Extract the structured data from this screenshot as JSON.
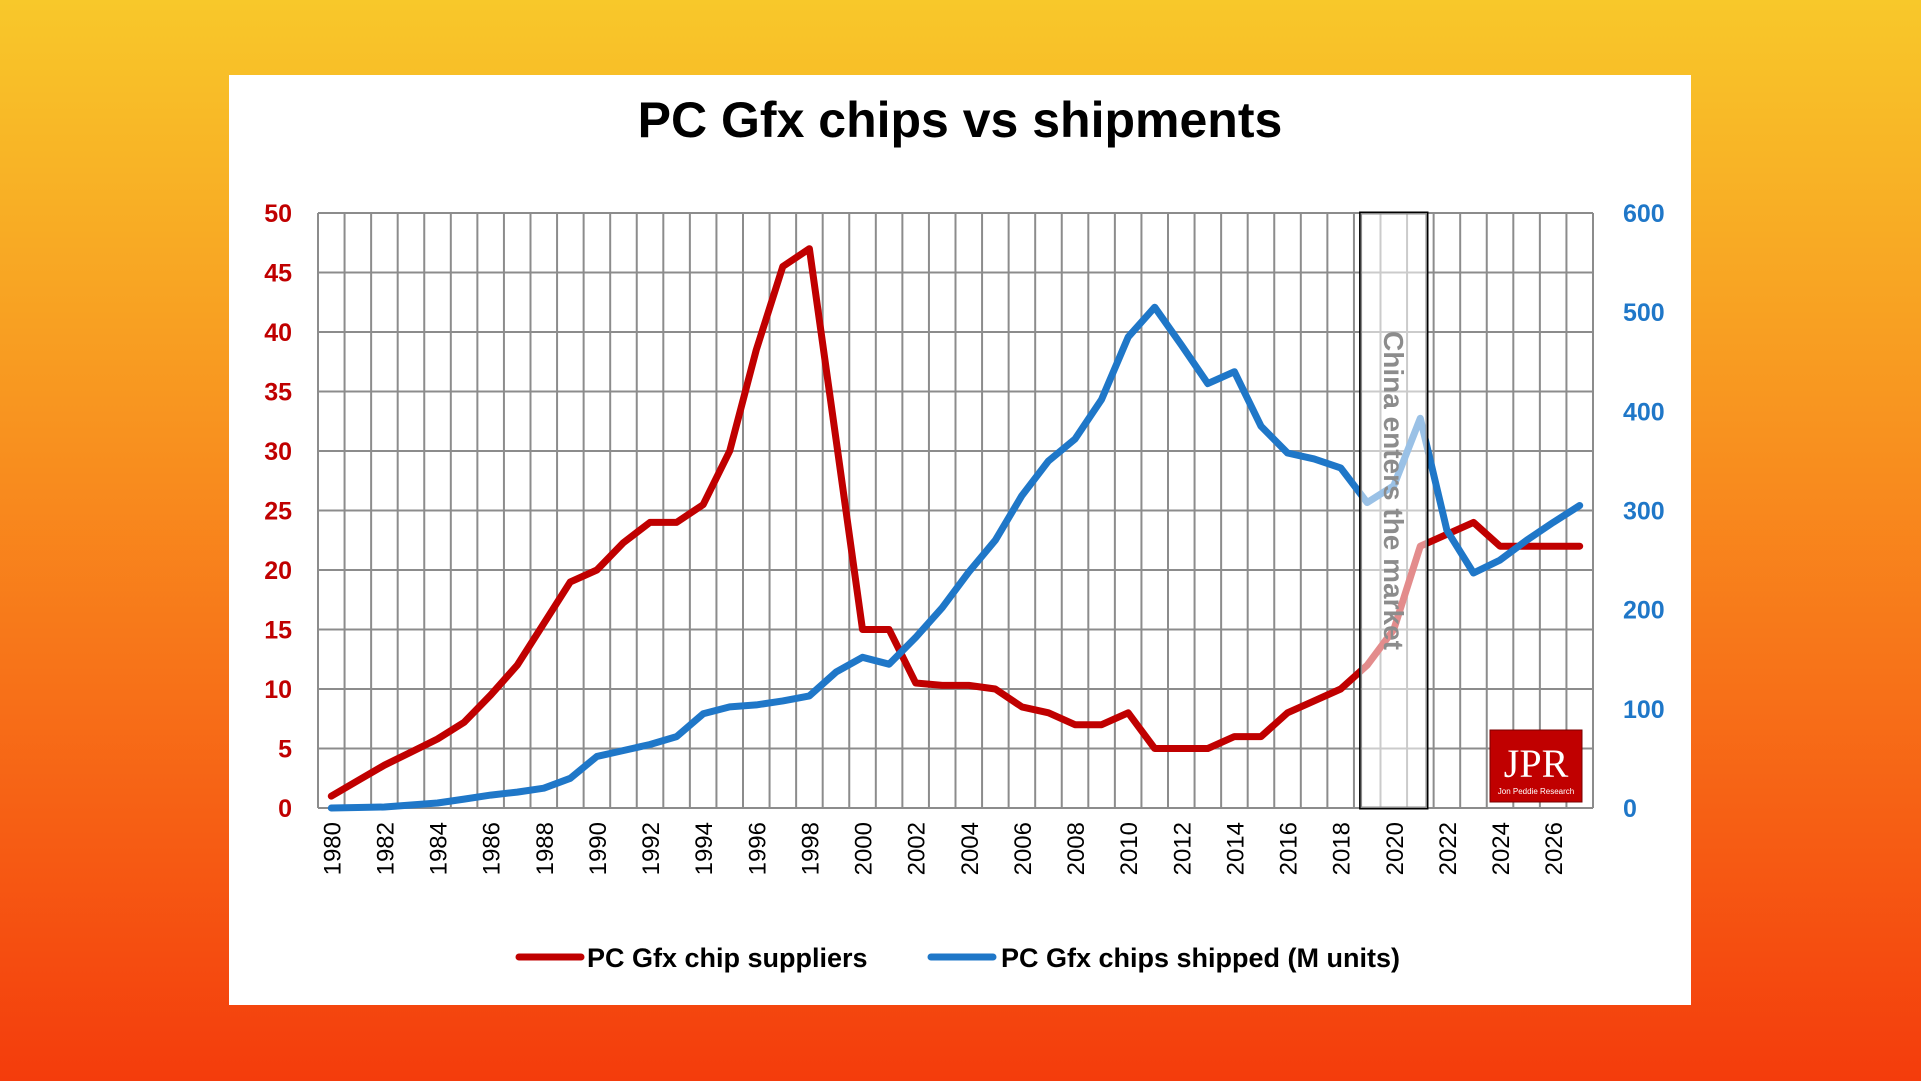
{
  "slide": {
    "background_top": "#f8c82a",
    "background_bottom": "#f43c0c"
  },
  "logo": {
    "text": "JPR",
    "subtext": "Jon Peddie Research",
    "color": "#c00000"
  },
  "chart_data": {
    "type": "line",
    "title": "PC Gfx chips vs shipments",
    "annotation": {
      "text": "China enters the market",
      "x_start": 2018.75,
      "x_end": 2021.25
    },
    "x": [
      1980,
      1981,
      1982,
      1983,
      1984,
      1985,
      1986,
      1987,
      1988,
      1989,
      1990,
      1991,
      1992,
      1993,
      1994,
      1995,
      1996,
      1997,
      1998,
      1999,
      2000,
      2001,
      2002,
      2003,
      2004,
      2005,
      2006,
      2007,
      2008,
      2009,
      2010,
      2011,
      2012,
      2013,
      2014,
      2015,
      2016,
      2017,
      2018,
      2019,
      2020,
      2021,
      2022,
      2023,
      2024,
      2025,
      2026,
      2027
    ],
    "x_ticks": [
      "1980",
      "1982",
      "1984",
      "1986",
      "1988",
      "1990",
      "1992",
      "1994",
      "1996",
      "1998",
      "2000",
      "2002",
      "2004",
      "2006",
      "2008",
      "2010",
      "2012",
      "2014",
      "2016",
      "2018",
      "2020",
      "2022",
      "2024",
      "2026"
    ],
    "y_left": {
      "ticks": [
        "0",
        "5",
        "10",
        "15",
        "20",
        "25",
        "30",
        "35",
        "40",
        "45",
        "50"
      ],
      "ylim": [
        0,
        50
      ],
      "color": "#c00000"
    },
    "y_right": {
      "ticks": [
        "0",
        "100",
        "200",
        "300",
        "400",
        "500",
        "600"
      ],
      "ylim": [
        0,
        600
      ],
      "color": "#1f77c8"
    },
    "series": [
      {
        "name": "PC Gfx chip suppliers",
        "axis": "left",
        "color": "#c00000",
        "values": [
          1,
          2.3,
          3.6,
          4.7,
          5.8,
          7.2,
          9.5,
          12,
          15.5,
          19,
          20,
          22.3,
          24,
          24,
          25.5,
          30,
          38.5,
          45.5,
          47,
          31,
          15,
          15,
          10.5,
          10.3,
          10.3,
          10,
          8.5,
          8,
          7,
          7,
          8,
          5,
          5,
          5,
          6,
          6,
          8,
          9,
          10,
          12,
          15,
          22,
          23,
          24,
          22,
          22,
          22,
          22
        ]
      },
      {
        "name": "PC Gfx chips shipped (M units)",
        "axis": "right",
        "color": "#1f77c8",
        "values": [
          0,
          0.5,
          1,
          3,
          5,
          9,
          13,
          16,
          20,
          30,
          52,
          58,
          64,
          72,
          95,
          102,
          104,
          108,
          113,
          137,
          152,
          145,
          172,
          202,
          238,
          270,
          315,
          350,
          372,
          412,
          475,
          505,
          467,
          428,
          440,
          385,
          358,
          352,
          343,
          308,
          325,
          393,
          280,
          237,
          250,
          270,
          288,
          305
        ]
      }
    ],
    "legend": {
      "position": "bottom"
    },
    "grid": true
  }
}
